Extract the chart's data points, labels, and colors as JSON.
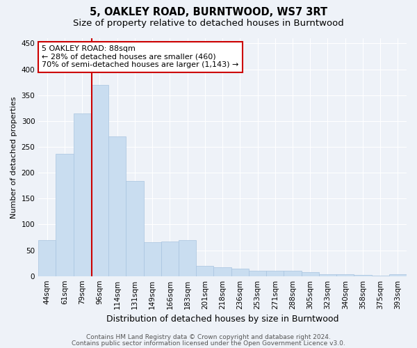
{
  "title": "5, OAKLEY ROAD, BURNTWOOD, WS7 3RT",
  "subtitle": "Size of property relative to detached houses in Burntwood",
  "xlabel": "Distribution of detached houses by size in Burntwood",
  "ylabel": "Number of detached properties",
  "categories": [
    "44sqm",
    "61sqm",
    "79sqm",
    "96sqm",
    "114sqm",
    "131sqm",
    "149sqm",
    "166sqm",
    "183sqm",
    "201sqm",
    "218sqm",
    "236sqm",
    "253sqm",
    "271sqm",
    "288sqm",
    "305sqm",
    "323sqm",
    "340sqm",
    "358sqm",
    "375sqm",
    "393sqm"
  ],
  "values": [
    70,
    237,
    315,
    370,
    270,
    184,
    66,
    67,
    70,
    20,
    17,
    15,
    10,
    10,
    10,
    7,
    3,
    3,
    2,
    1,
    3
  ],
  "bar_color": "#c9ddf0",
  "bar_edge_color": "#a8c4e0",
  "vline_x_index": 2.53,
  "vline_color": "#cc0000",
  "annotation_line1": "5 OAKLEY ROAD: 88sqm",
  "annotation_line2": "← 28% of detached houses are smaller (460)",
  "annotation_line3": "70% of semi-detached houses are larger (1,143) →",
  "annotation_box_color": "#ffffff",
  "annotation_box_edge": "#cc0000",
  "ylim": [
    0,
    460
  ],
  "yticks": [
    0,
    50,
    100,
    150,
    200,
    250,
    300,
    350,
    400,
    450
  ],
  "background_color": "#eef2f8",
  "grid_color": "#ffffff",
  "footer_line1": "Contains HM Land Registry data © Crown copyright and database right 2024.",
  "footer_line2": "Contains public sector information licensed under the Open Government Licence v3.0.",
  "title_fontsize": 10.5,
  "subtitle_fontsize": 9.5,
  "xlabel_fontsize": 9,
  "ylabel_fontsize": 8,
  "tick_fontsize": 7.5,
  "annotation_fontsize": 8,
  "footer_fontsize": 6.5
}
